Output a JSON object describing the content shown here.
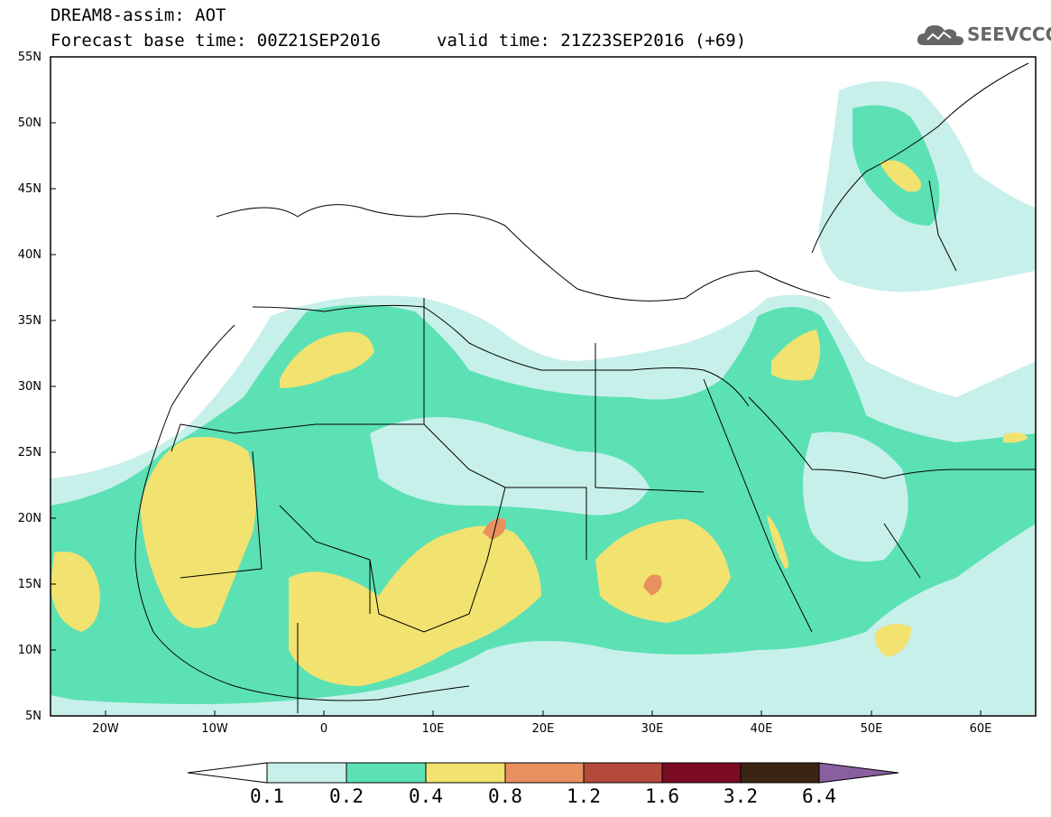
{
  "title": {
    "line1": "DREAM8-assim: AOT",
    "base_time": "Forecast base time: 00Z21SEP2016",
    "valid_time": "valid time: 21Z23SEP2016 (+69)"
  },
  "logo": {
    "text": "SEEVCCC",
    "icon": "cloud-icon"
  },
  "axes": {
    "lat_labels": [
      "55N",
      "50N",
      "45N",
      "40N",
      "35N",
      "30N",
      "25N",
      "20N",
      "15N",
      "10N",
      "5N"
    ],
    "lon_labels": [
      "20W",
      "10W",
      "0",
      "10E",
      "20E",
      "30E",
      "40E",
      "50E",
      "60E"
    ]
  },
  "colorbar": {
    "labels": [
      "0.1",
      "0.2",
      "0.4",
      "0.8",
      "1.2",
      "1.6",
      "3.2",
      "6.4"
    ],
    "colors": [
      "#c8f0ea",
      "#5ce1b5",
      "#f2e270",
      "#e8915f",
      "#b34a3a",
      "#7a0b22",
      "#3a2414",
      "#8a5fa0"
    ]
  }
}
